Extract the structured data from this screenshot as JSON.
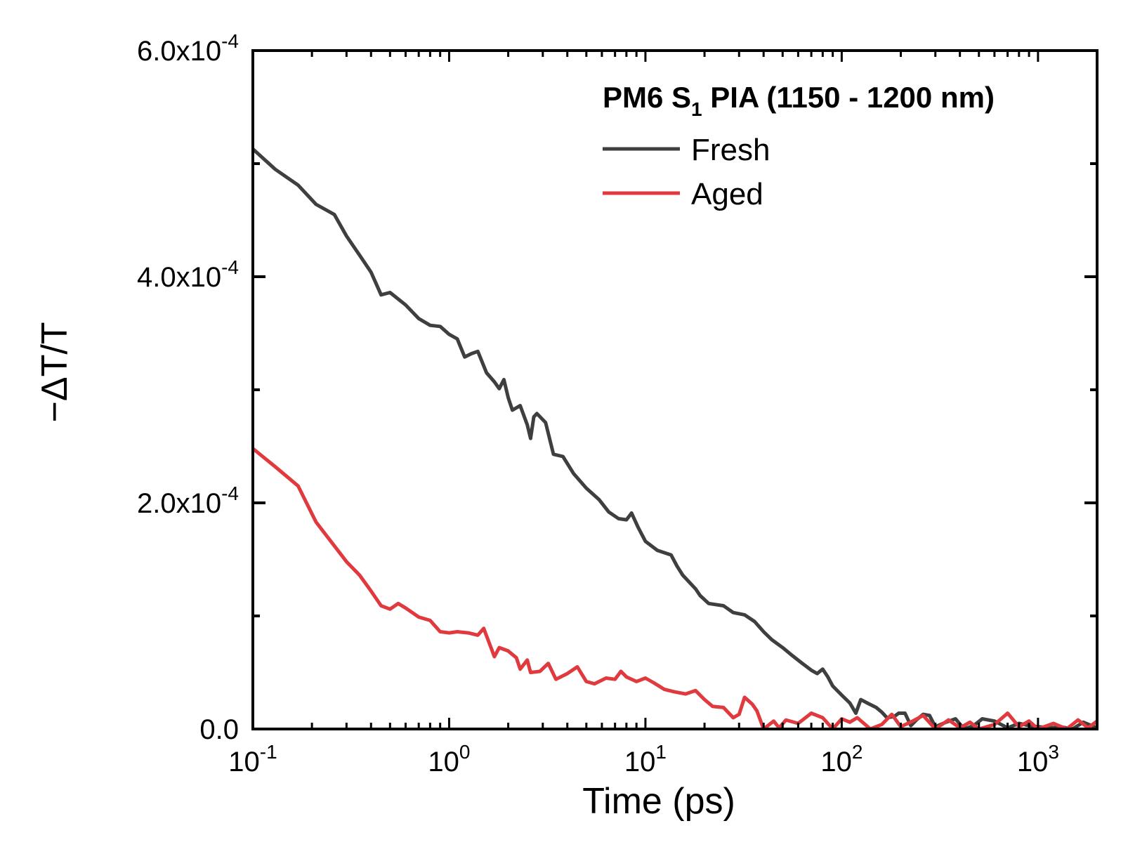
{
  "chart_data": {
    "type": "line",
    "title": "",
    "xlabel": "Time (ps)",
    "ylabel": "−ΔT/T",
    "xscale": "log",
    "xlim": [
      0.1,
      2000
    ],
    "ylim": [
      0,
      0.0006
    ],
    "grid": false,
    "legend_placement": "top-right",
    "legend_title": {
      "main": "PM6 S",
      "sub": "1",
      "rest": " PIA (1150 - 1200 nm)"
    },
    "x_ticks": [
      {
        "value": 0.1,
        "base": "10",
        "exp": "-1"
      },
      {
        "value": 1,
        "base": "10",
        "exp": "0"
      },
      {
        "value": 10,
        "base": "10",
        "exp": "1"
      },
      {
        "value": 100,
        "base": "10",
        "exp": "2"
      },
      {
        "value": 1000,
        "base": "10",
        "exp": "3"
      }
    ],
    "y_ticks": [
      {
        "value": 0,
        "mant": "0.0",
        "exp": ""
      },
      {
        "value": 0.0002,
        "mant": "2.0x10",
        "exp": "-4"
      },
      {
        "value": 0.0004,
        "mant": "4.0x10",
        "exp": "-4"
      },
      {
        "value": 0.0006,
        "mant": "6.0x10",
        "exp": "-4"
      }
    ],
    "series": [
      {
        "name": "Fresh",
        "color": "#3f3f3f",
        "points": [
          [
            0.1,
            0.000513
          ],
          [
            0.13,
            0.000495
          ],
          [
            0.17,
            0.000481
          ],
          [
            0.21,
            0.000464
          ],
          [
            0.26,
            0.000455
          ],
          [
            0.3,
            0.000436
          ],
          [
            0.35,
            0.000419
          ],
          [
            0.4,
            0.000404
          ],
          [
            0.45,
            0.000384
          ],
          [
            0.5,
            0.000386
          ],
          [
            0.6,
            0.000375
          ],
          [
            0.7,
            0.000363
          ],
          [
            0.8,
            0.000357
          ],
          [
            0.9,
            0.000356
          ],
          [
            1.0,
            0.000349
          ],
          [
            1.1,
            0.000345
          ],
          [
            1.2,
            0.000329
          ],
          [
            1.3,
            0.000332
          ],
          [
            1.4,
            0.000334
          ],
          [
            1.55,
            0.000315
          ],
          [
            1.7,
            0.000307
          ],
          [
            1.8,
            0.000301
          ],
          [
            1.9,
            0.000309
          ],
          [
            2.0,
            0.000293
          ],
          [
            2.1,
            0.000282
          ],
          [
            2.3,
            0.000286
          ],
          [
            2.5,
            0.000269
          ],
          [
            2.6,
            0.000257
          ],
          [
            2.7,
            0.000276
          ],
          [
            2.8,
            0.000279
          ],
          [
            3.1,
            0.000271
          ],
          [
            3.4,
            0.000243
          ],
          [
            3.8,
            0.000241
          ],
          [
            4.3,
            0.000226
          ],
          [
            5.0,
            0.000213
          ],
          [
            5.8,
            0.000203
          ],
          [
            6.5,
            0.000192
          ],
          [
            7.3,
            0.000186
          ],
          [
            8.0,
            0.000185
          ],
          [
            8.5,
            0.000191
          ],
          [
            9.2,
            0.000178
          ],
          [
            10,
            0.000166
          ],
          [
            11.5,
            0.000158
          ],
          [
            13.5,
            0.000154
          ],
          [
            14.5,
            0.000144
          ],
          [
            15.5,
            0.000136
          ],
          [
            18,
            0.000124
          ],
          [
            19,
            0.000118
          ],
          [
            21,
            0.000111
          ],
          [
            25,
            0.000109
          ],
          [
            28,
            0.000103
          ],
          [
            32,
            0.000101
          ],
          [
            36,
            9.5e-05
          ],
          [
            40,
            8.6e-05
          ],
          [
            44,
            7.9e-05
          ],
          [
            50,
            7.2e-05
          ],
          [
            56,
            6.5e-05
          ],
          [
            63,
            5.8e-05
          ],
          [
            70,
            5.2e-05
          ],
          [
            75,
            4.9e-05
          ],
          [
            80,
            5.3e-05
          ],
          [
            85,
            4.6e-05
          ],
          [
            90,
            3.8e-05
          ],
          [
            100,
            3e-05
          ],
          [
            110,
            2.3e-05
          ],
          [
            118,
            1.4e-05
          ],
          [
            125,
            2.6e-05
          ],
          [
            135,
            2.3e-05
          ],
          [
            150,
            1.9e-05
          ],
          [
            160,
            1.5e-05
          ],
          [
            170,
            1e-05
          ],
          [
            185,
            1.1e-05
          ],
          [
            195,
            1.4e-05
          ],
          [
            210,
            1.4e-05
          ],
          [
            225,
            3e-06
          ],
          [
            240,
            8e-06
          ],
          [
            260,
            1.3e-05
          ],
          [
            280,
            1.2e-05
          ],
          [
            300,
            2e-06
          ],
          [
            340,
            6e-06
          ],
          [
            380,
            9e-06
          ],
          [
            420,
            0
          ],
          [
            470,
            3e-06
          ],
          [
            520,
            9e-06
          ],
          [
            600,
            7e-06
          ],
          [
            700,
            1e-06
          ],
          [
            800,
            5e-06
          ],
          [
            900,
            3e-06
          ],
          [
            1000,
            2e-06
          ],
          [
            1150,
            1e-06
          ],
          [
            1300,
            2e-06
          ],
          [
            1500,
            0
          ],
          [
            1700,
            6e-06
          ],
          [
            2000,
            1e-06
          ]
        ]
      },
      {
        "name": "Aged",
        "color": "#e0393e",
        "points": [
          [
            0.1,
            0.000248
          ],
          [
            0.13,
            0.000232
          ],
          [
            0.17,
            0.000215
          ],
          [
            0.21,
            0.000183
          ],
          [
            0.26,
            0.000162
          ],
          [
            0.3,
            0.000148
          ],
          [
            0.35,
            0.000136
          ],
          [
            0.4,
            0.000122
          ],
          [
            0.45,
            0.000109
          ],
          [
            0.5,
            0.000106
          ],
          [
            0.55,
            0.000111
          ],
          [
            0.6,
            0.000107
          ],
          [
            0.7,
            9.9e-05
          ],
          [
            0.8,
            9.6e-05
          ],
          [
            0.9,
            8.6e-05
          ],
          [
            1.0,
            8.5e-05
          ],
          [
            1.1,
            8.6e-05
          ],
          [
            1.25,
            8.5e-05
          ],
          [
            1.4,
            8.3e-05
          ],
          [
            1.5,
            8.9e-05
          ],
          [
            1.7,
            6.4e-05
          ],
          [
            1.8,
            7.2e-05
          ],
          [
            2.0,
            6.9e-05
          ],
          [
            2.2,
            6.3e-05
          ],
          [
            2.3,
            5.3e-05
          ],
          [
            2.5,
            6.1e-05
          ],
          [
            2.6,
            5e-05
          ],
          [
            2.9,
            5.1e-05
          ],
          [
            3.2,
            5.8e-05
          ],
          [
            3.5,
            4.4e-05
          ],
          [
            4.0,
            4.9e-05
          ],
          [
            4.5,
            5.5e-05
          ],
          [
            5.0,
            4.2e-05
          ],
          [
            5.5,
            4e-05
          ],
          [
            6.3,
            4.5e-05
          ],
          [
            7.0,
            4.4e-05
          ],
          [
            7.5,
            5.1e-05
          ],
          [
            8.0,
            4.6e-05
          ],
          [
            9.0,
            4.2e-05
          ],
          [
            10,
            4.5e-05
          ],
          [
            11,
            4.1e-05
          ],
          [
            12.5,
            3.5e-05
          ],
          [
            14,
            3.3e-05
          ],
          [
            16,
            3.1e-05
          ],
          [
            18,
            3.4e-05
          ],
          [
            20,
            2.6e-05
          ],
          [
            22,
            2e-05
          ],
          [
            25,
            1.9e-05
          ],
          [
            28,
            1e-05
          ],
          [
            30,
            1.3e-05
          ],
          [
            32,
            2.8e-05
          ],
          [
            35,
            2.2e-05
          ],
          [
            37,
            1.6e-05
          ],
          [
            40,
            0
          ],
          [
            45,
            7e-06
          ],
          [
            48,
            1e-06
          ],
          [
            52,
            8e-06
          ],
          [
            60,
            5e-06
          ],
          [
            70,
            1.4e-05
          ],
          [
            80,
            1e-05
          ],
          [
            90,
            0
          ],
          [
            100,
            9e-06
          ],
          [
            110,
            6e-06
          ],
          [
            120,
            1e-05
          ],
          [
            140,
            0
          ],
          [
            160,
            4e-06
          ],
          [
            180,
            1.3e-05
          ],
          [
            200,
            2e-06
          ],
          [
            230,
            7e-06
          ],
          [
            260,
            1.2e-05
          ],
          [
            300,
            0
          ],
          [
            350,
            8e-06
          ],
          [
            400,
            1e-06
          ],
          [
            450,
            6e-06
          ],
          [
            500,
            0
          ],
          [
            600,
            4e-06
          ],
          [
            700,
            1.4e-05
          ],
          [
            800,
            2e-06
          ],
          [
            900,
            7e-06
          ],
          [
            1000,
            0
          ],
          [
            1200,
            5e-06
          ],
          [
            1400,
            0
          ],
          [
            1600,
            8e-06
          ],
          [
            1800,
            1e-06
          ],
          [
            2000,
            7e-06
          ]
        ]
      }
    ]
  }
}
